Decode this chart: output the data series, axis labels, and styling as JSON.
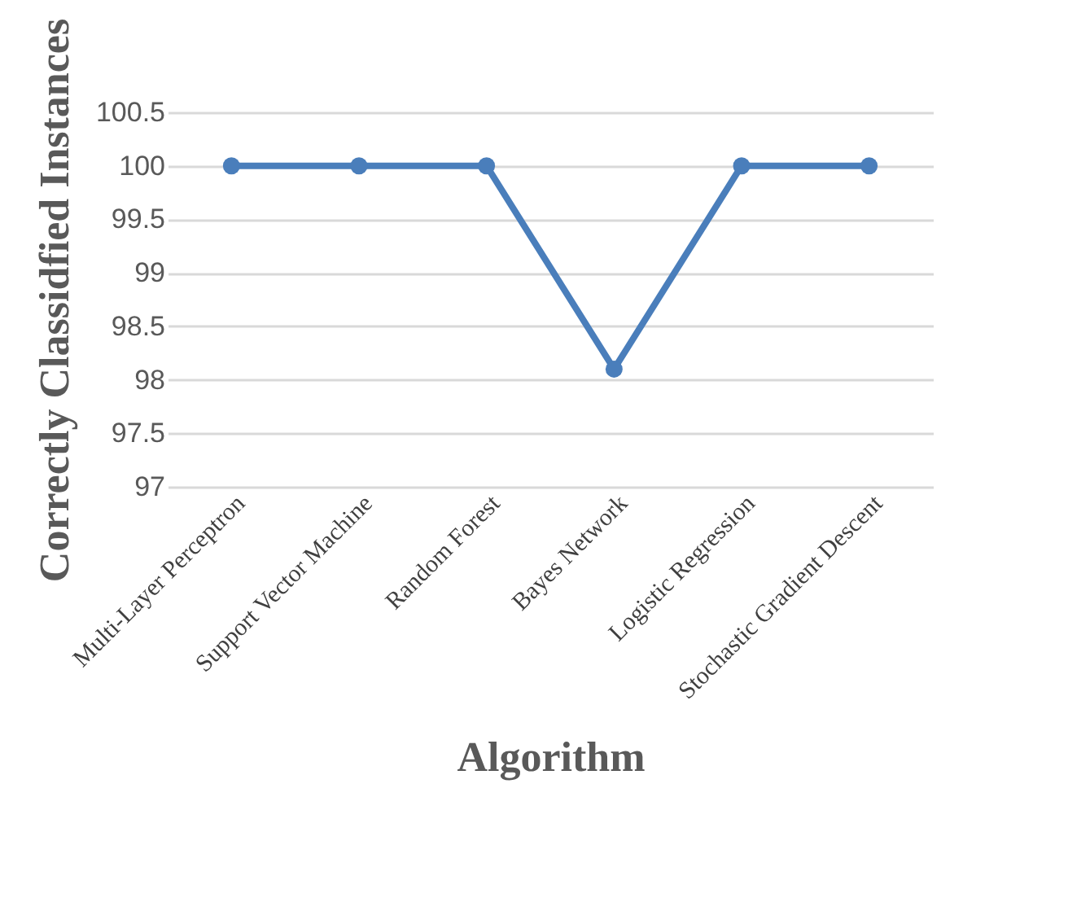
{
  "chart_data": {
    "type": "line",
    "xlabel": "Algorithm",
    "ylabel": "Correctly Classidfied Instances",
    "categories": [
      "Multi-Layer Perceptron",
      "Support Vector Machine",
      "Random Forest",
      "Bayes Network",
      "Logistic Regression",
      "Stochastic Gradient Descent"
    ],
    "series": [
      {
        "color": "#4a7ebb",
        "values": [
          100,
          100,
          100,
          98.1,
          100,
          100
        ]
      }
    ],
    "ylim": [
      97,
      100.5
    ],
    "yticks": [
      97,
      97.5,
      98,
      98.5,
      99,
      99.5,
      100,
      100.5
    ],
    "grid": "y",
    "legend": false,
    "marker": "circle",
    "line_style": "solid"
  }
}
